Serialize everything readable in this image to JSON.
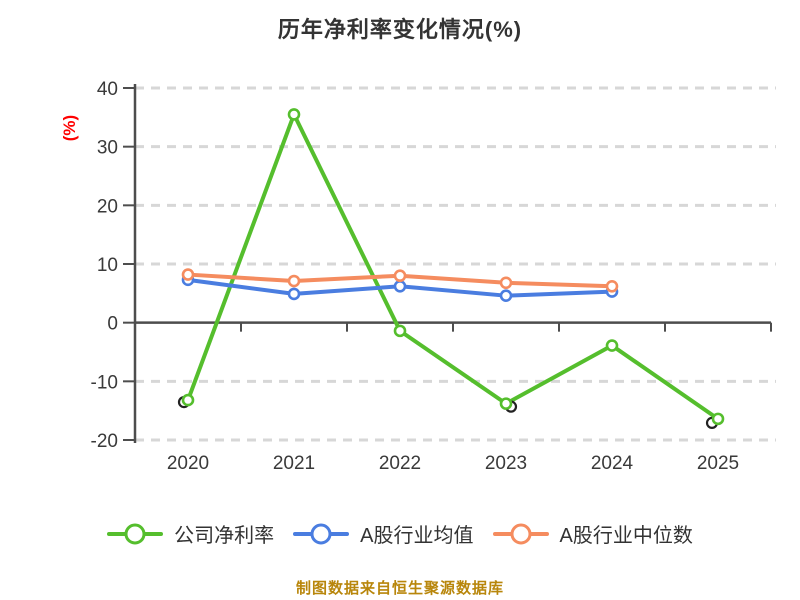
{
  "title": "历年净利率变化情况(%)",
  "y_axis_unit": "(%)",
  "source_note": "制图数据来自恒生聚源数据库",
  "colors": {
    "title_text": "#333333",
    "axis_text": "#3a3a3a",
    "axis_line": "#4d4d4d",
    "gridline": "#d7d7d7",
    "y_unit_red": "#ff0000",
    "source_note_gold": "#b8860b",
    "company_green": "#55be2d",
    "industry_mean_blue": "#4a7de0",
    "industry_median_orange": "#f58c5f"
  },
  "chart_data": {
    "type": "line",
    "title": "历年净利率变化情况(%)",
    "xlabel": "",
    "ylabel": "(%)",
    "categories": [
      "2020",
      "2021",
      "2022",
      "2023",
      "2024",
      "2025"
    ],
    "ylim": [
      -20,
      40
    ],
    "y_ticks": [
      40,
      30,
      20,
      10,
      0,
      -10,
      -20
    ],
    "grid": "horizontal dashed gridlines, solid zero axis line",
    "legend_position": "bottom",
    "series": [
      {
        "name": "公司净利率",
        "key": "company-net-margin",
        "color": "#55be2d",
        "marker": "circle-white-fill",
        "values": [
          -13.2,
          35.5,
          -1.4,
          -13.8,
          -3.9,
          -16.4
        ]
      },
      {
        "name": "A股行业均值",
        "key": "industry-mean",
        "color": "#4a7de0",
        "marker": "circle-white-fill",
        "values": [
          7.3,
          4.9,
          6.2,
          4.6,
          5.3
        ]
      },
      {
        "name": "A股行业中位数",
        "key": "industry-median",
        "color": "#f58c5f",
        "marker": "circle-white-fill",
        "values": [
          8.2,
          7.1,
          8.0,
          6.8,
          6.2
        ]
      }
    ],
    "source_note": "制图数据来自恒生聚源数据库"
  }
}
